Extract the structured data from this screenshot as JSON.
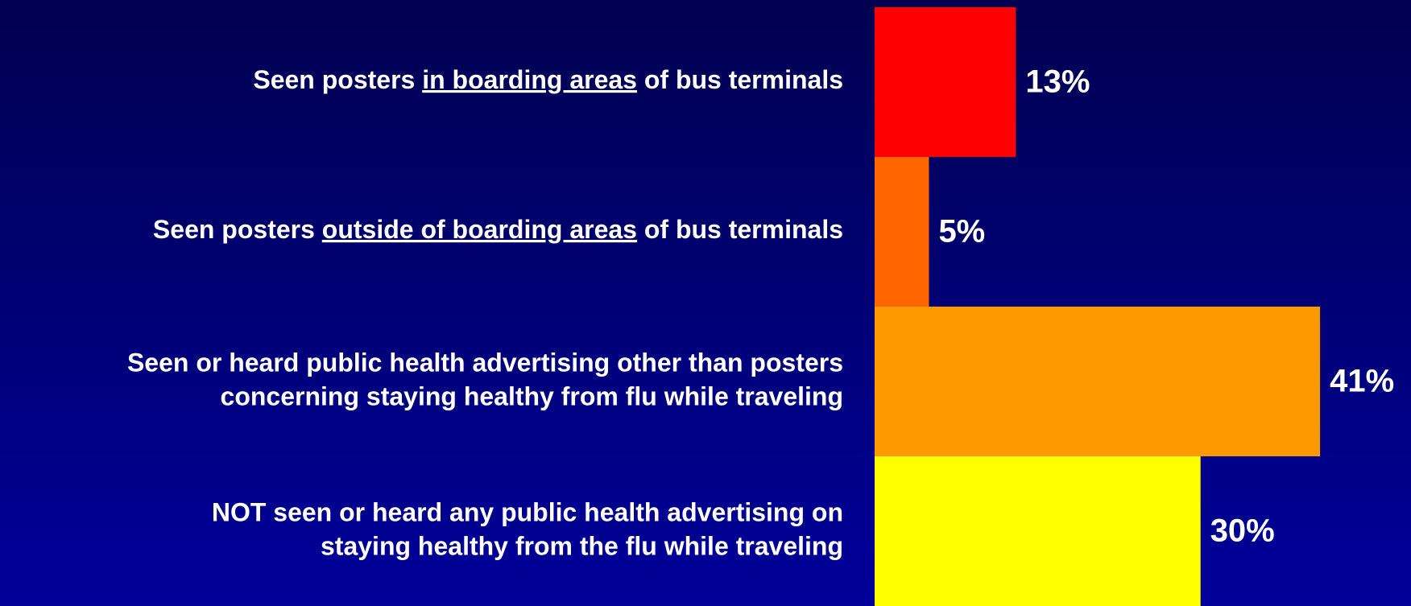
{
  "chart_data": {
    "type": "hbar",
    "categories": [
      [
        "Seen posters in boarding areas of bus terminals"
      ],
      [
        "Seen posters outside of boarding areas of bus terminals"
      ],
      [
        "Seen or heard public health advertising other than posters",
        "concerning staying healthy from flu while traveling"
      ],
      [
        "NOT seen or heard any public health advertising on",
        "staying healthy from the flu while traveling"
      ]
    ],
    "underlined": [
      "in boarding areas",
      "outside of boarding areas",
      null,
      null
    ],
    "values": [
      13,
      5,
      41,
      30
    ],
    "value_labels": [
      "13%",
      "5%",
      "41%",
      "30%"
    ],
    "colors": [
      "#ff0000",
      "#ff6600",
      "#ff9900",
      "#ffff00"
    ],
    "xlim": [
      0,
      50
    ]
  }
}
